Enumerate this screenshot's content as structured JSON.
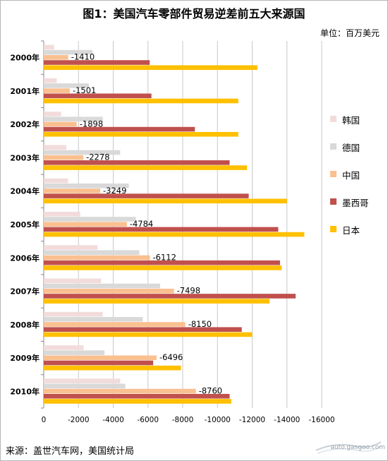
{
  "title": "图1：美国汽车零部件贸易逆差前五大来源国",
  "unit": "单位：百万美元",
  "source": "来源：盖世汽车网，美国统计局",
  "watermark": "auto.gasgoo.com",
  "chart_data": {
    "type": "bar",
    "orientation": "horizontal",
    "categories": [
      "2000年",
      "2001年",
      "2002年",
      "2003年",
      "2004年",
      "2005年",
      "2006年",
      "2007年",
      "2008年",
      "2009年",
      "2010年"
    ],
    "x_ticks": [
      "0",
      "-2000",
      "-4000",
      "-6000",
      "-8000",
      "-10000",
      "-12000",
      "-14000",
      "-16000"
    ],
    "xlim": [
      0,
      -16000
    ],
    "grid": true,
    "legend_position": "right",
    "series": [
      {
        "name": "韩国",
        "color": "#f2dcdb",
        "values": [
          -600,
          -750,
          -1000,
          -1300,
          -1400,
          -2100,
          -3100,
          -3300,
          -3400,
          -2300,
          -4400
        ]
      },
      {
        "name": "德国",
        "color": "#d9d9d9",
        "values": [
          -2800,
          -2600,
          -3400,
          -4400,
          -4900,
          -5300,
          -5500,
          -6700,
          -5700,
          -3500,
          -4700
        ]
      },
      {
        "name": "中国",
        "color": "#fac090",
        "values": [
          -1410,
          -1501,
          -1898,
          -2278,
          -3249,
          -4784,
          -6112,
          -7498,
          -8150,
          -6496,
          -8760
        ]
      },
      {
        "name": "墨西哥",
        "color": "#c0504d",
        "values": [
          -6100,
          -6200,
          -8700,
          -10700,
          -11800,
          -13500,
          -13600,
          -14500,
          -11400,
          -6300,
          -10700
        ]
      },
      {
        "name": "日本",
        "color": "#ffc000",
        "values": [
          -12300,
          -11200,
          -11200,
          -11700,
          -14000,
          -15000,
          -13700,
          -13000,
          -12000,
          -7900,
          -10800
        ]
      }
    ],
    "data_labels": {
      "series": "中国",
      "labels": [
        "-1410",
        "-1501",
        "-1898",
        "-2278",
        "-3249",
        "-4784",
        "-6112",
        "-7498",
        "-8150",
        "-6496",
        "-8760"
      ]
    }
  }
}
